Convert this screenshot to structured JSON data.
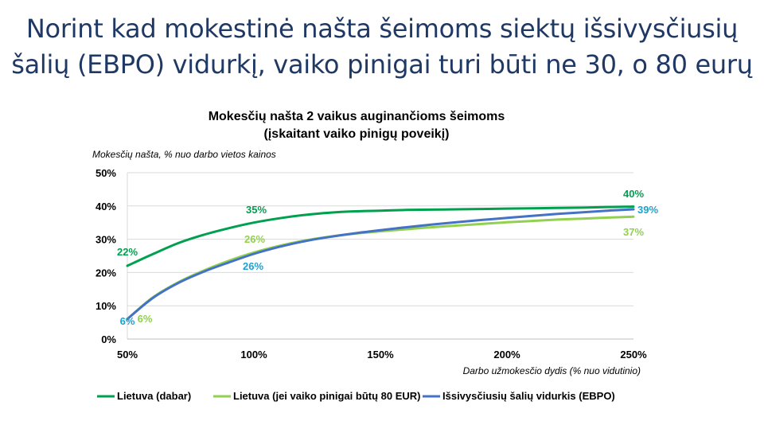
{
  "slide": {
    "headline_line1": "Norint kad mokestinė našta šeimoms siektų išsivysčiusių",
    "headline_line2": "šalių (EBPO) vidurkį, vaiko pinigai turi būti ne 30, o 80 eurų"
  },
  "chart_data": {
    "type": "line",
    "title_line1": "Mokesčių našta 2 vaikus auginančioms šeimoms",
    "title_line2": "(įskaitant vaiko pinigų poveikį)",
    "ylabel": "Mokesčių našta, % nuo darbo vietos kainos",
    "xlabel": "Darbo užmokesčio dydis (% nuo vidutinio)",
    "xlim": [
      50,
      250
    ],
    "ylim": [
      0,
      50
    ],
    "x_ticks": [
      50,
      100,
      150,
      200,
      250
    ],
    "x_tick_labels": [
      "50%",
      "100%",
      "150%",
      "200%",
      "250%"
    ],
    "y_ticks": [
      0,
      10,
      20,
      30,
      40,
      50
    ],
    "y_tick_labels": [
      "0%",
      "10%",
      "20%",
      "30%",
      "40%",
      "50%"
    ],
    "grid": "horizontal",
    "legend_position": "bottom",
    "x": [
      50,
      60,
      70,
      80,
      90,
      100,
      110,
      120,
      130,
      140,
      150,
      160,
      170,
      180,
      190,
      200,
      210,
      220,
      230,
      240,
      250
    ],
    "series": [
      {
        "name": "Lietuva (dabar)",
        "color": "#00a04f",
        "values": [
          22,
          25.5,
          28.8,
          31.3,
          33.3,
          35,
          36.3,
          37.3,
          38,
          38.4,
          38.6,
          38.8,
          38.9,
          39,
          39.1,
          39.2,
          39.3,
          39.4,
          39.5,
          39.7,
          39.8
        ]
      },
      {
        "name": "Lietuva (jei vaiko pinigai būtų 80 EUR)",
        "color": "#92d050",
        "values": [
          6,
          12.5,
          17,
          20.5,
          23.5,
          26,
          28,
          29.6,
          30.8,
          31.7,
          32.4,
          33,
          33.6,
          34.1,
          34.6,
          35.1,
          35.5,
          35.9,
          36.2,
          36.5,
          36.8
        ]
      },
      {
        "name": "Išsivysčiusių šalių vidurkis (EBPO)",
        "color": "#4472c4",
        "values": [
          6,
          12.3,
          16.8,
          20.2,
          23,
          25.6,
          27.7,
          29.4,
          30.7,
          31.8,
          32.7,
          33.6,
          34.4,
          35.1,
          35.8,
          36.4,
          37,
          37.6,
          38.1,
          38.6,
          39
        ]
      }
    ],
    "data_labels": [
      {
        "text": "22%",
        "color": "#00a04f"
      },
      {
        "text": "35%",
        "color": "#00a04f"
      },
      {
        "text": "40%",
        "color": "#00a04f"
      },
      {
        "text": "26%",
        "color": "#92d050"
      },
      {
        "text": "6%",
        "color": "#92d050"
      },
      {
        "text": "37%",
        "color": "#92d050"
      },
      {
        "text": "6%",
        "color": "#1ba3d0"
      },
      {
        "text": "26%",
        "color": "#1ba3d0"
      },
      {
        "text": "39%",
        "color": "#1ba3d0"
      }
    ]
  }
}
